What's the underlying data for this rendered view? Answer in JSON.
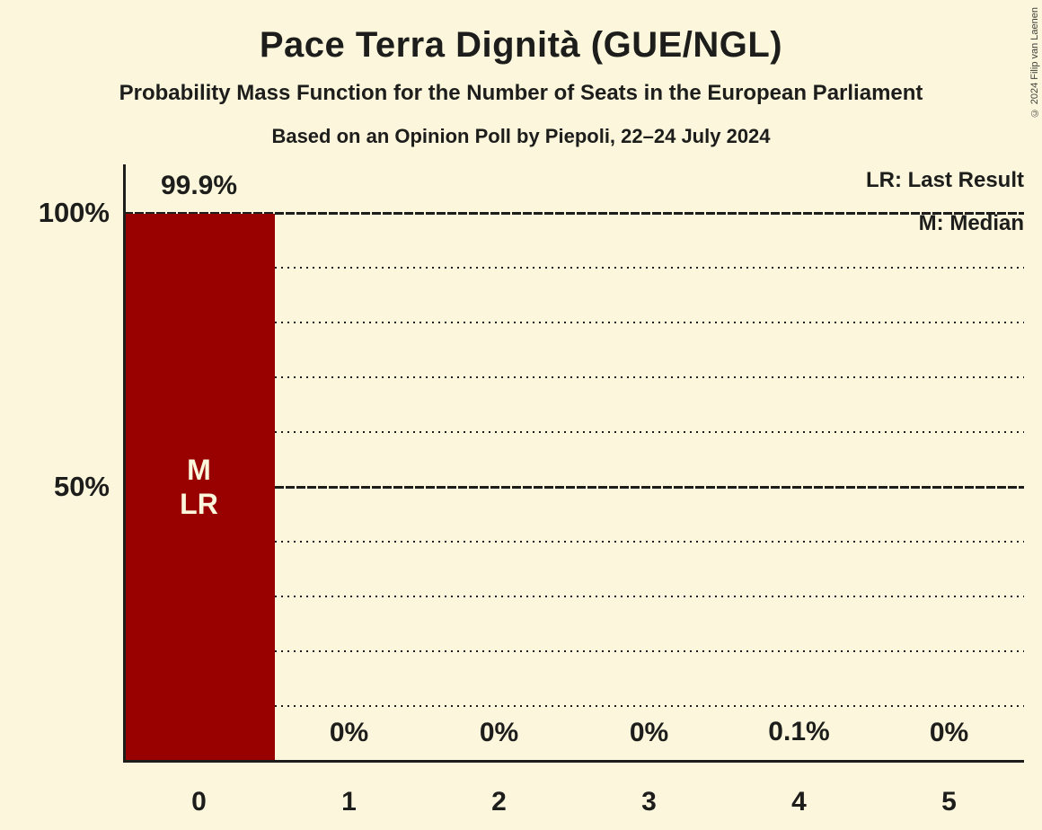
{
  "page": {
    "title": "Pace Terra Dignità (GUE/NGL)",
    "subtitle": "Probability Mass Function for the Number of Seats in the European Parliament",
    "poll_line": "Based on an Opinion Poll by Piepoli, 22–24 July 2024",
    "copyright": "© 2024 Filip van Laenen"
  },
  "legend": {
    "last_result": "LR: Last Result",
    "median": "M: Median"
  },
  "colors": {
    "background": "#FBF6DC",
    "bar": "#990000",
    "text": "#1D1D1B",
    "bar_text": "#FBF6DC"
  },
  "chart_data": {
    "type": "bar",
    "title": "Pace Terra Dignità (GUE/NGL)",
    "categories": [
      "0",
      "1",
      "2",
      "3",
      "4",
      "5"
    ],
    "values": [
      99.9,
      0,
      0,
      0,
      0.1,
      0
    ],
    "value_labels": [
      "99.9%",
      "0%",
      "0%",
      "0%",
      "0.1%",
      "0%"
    ],
    "bar_annotations": [
      {
        "category": "0",
        "lines": [
          "M",
          "LR"
        ]
      }
    ],
    "ylim": [
      0,
      100
    ],
    "y_ticks": [
      {
        "value": 100,
        "label": "100%"
      },
      {
        "value": 50,
        "label": "50%"
      }
    ],
    "gridlines": {
      "dotted_step_percent": 10,
      "strong_percent": [
        50,
        100
      ]
    },
    "legend_position": "top-right",
    "xlabel": "",
    "ylabel": ""
  }
}
